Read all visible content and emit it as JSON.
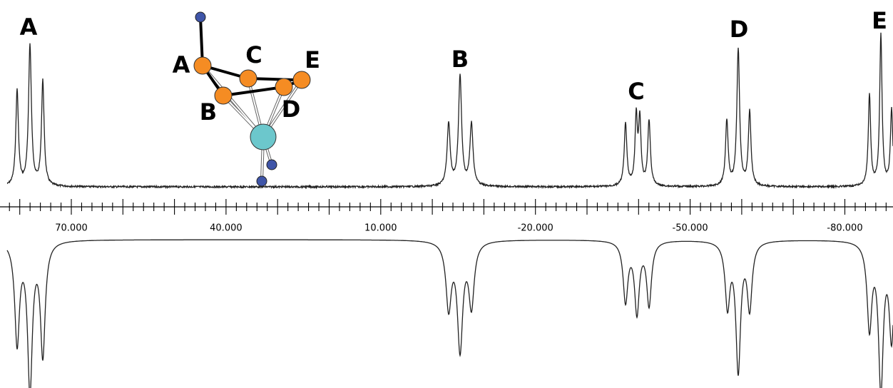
{
  "peak_labels": [
    "A",
    "B",
    "C",
    "D",
    "E"
  ],
  "molecule_labels": [
    "A",
    "B",
    "C",
    "D",
    "E"
  ],
  "axis": {
    "tick_labels": [
      "70.000",
      "40.000",
      "10.000",
      "-20.000",
      "-50.000",
      "-80.000"
    ]
  }
}
